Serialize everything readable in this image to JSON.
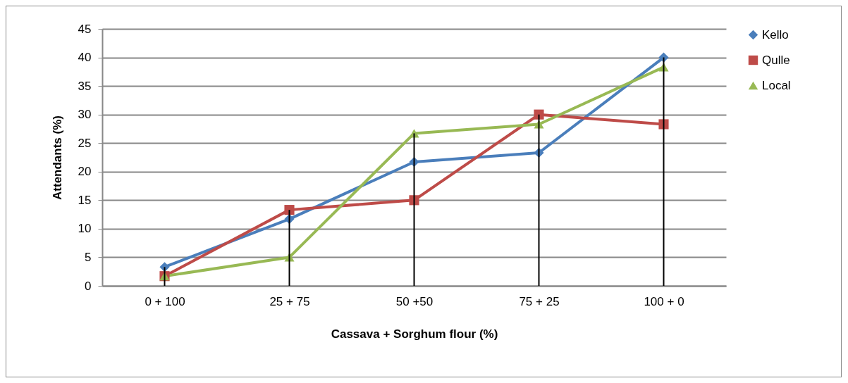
{
  "chart_data": {
    "type": "line",
    "xlabel": "Cassava + Sorghum flour (%)",
    "ylabel": "Attendants (%)",
    "categories": [
      "0 + 100",
      "25 + 75",
      "50 +50",
      "75 + 25",
      "100 + 0"
    ],
    "series": [
      {
        "name": "Kello",
        "color": "#4a7ebb",
        "marker": "diamond",
        "values": [
          3.3,
          11.7,
          21.7,
          23.3,
          40
        ]
      },
      {
        "name": "Qulle",
        "color": "#be4b48",
        "marker": "square",
        "values": [
          1.7,
          13.3,
          15,
          30,
          28.3
        ]
      },
      {
        "name": "Local",
        "color": "#98b954",
        "marker": "triangle",
        "values": [
          1.7,
          5,
          26.7,
          28.3,
          38.3
        ]
      },
      {
        "type": "bar",
        "color": "#000000",
        "values": [
          3.3,
          13.3,
          26.7,
          30,
          40
        ]
      }
    ],
    "ylim": [
      0,
      45
    ],
    "yticks": [
      0,
      5,
      10,
      15,
      20,
      25,
      30,
      35,
      40,
      45
    ],
    "grid": "y",
    "legend": "right"
  }
}
